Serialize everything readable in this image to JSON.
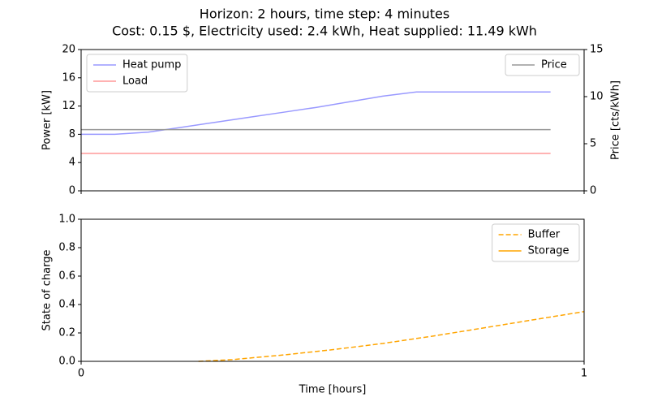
{
  "chart_data": [
    {
      "type": "line",
      "title": "Horizon: 2 hours, time step: 4 minutes",
      "subtitle": "Cost: 0.15 $, Electricity used: 2.4 kWh, Heat supplied: 11.49 kWh",
      "ylabel": "Power [kW]",
      "y2label": "Price [cts/kWh]",
      "x": [
        0,
        0.0667,
        0.1333,
        0.2,
        0.2667,
        0.3333,
        0.4,
        0.4667,
        0.5333,
        0.6,
        0.6667,
        0.7333,
        0.8,
        0.8667,
        0.9333
      ],
      "xlim": [
        0,
        1
      ],
      "xticks": [
        0,
        1
      ],
      "xticklabels": false,
      "ylim": [
        0,
        20
      ],
      "yticks": [
        0,
        4,
        8,
        12,
        16,
        20
      ],
      "y2lim": [
        0,
        15
      ],
      "y2ticks": [
        0,
        5,
        10,
        15
      ],
      "legend": "upper left",
      "legend2": "upper right",
      "series": [
        {
          "name": "Heat pump",
          "color": "#9999ff",
          "values": [
            8.0,
            8.0,
            8.3,
            9.0,
            9.7,
            10.4,
            11.1,
            11.8,
            12.6,
            13.4,
            14.0,
            14.0,
            14.0,
            14.0,
            14.0
          ]
        },
        {
          "name": "Load",
          "color": "#ff9999",
          "values": [
            5.3,
            5.3,
            5.3,
            5.3,
            5.3,
            5.3,
            5.3,
            5.3,
            5.3,
            5.3,
            5.3,
            5.3,
            5.3,
            5.3,
            5.3
          ]
        },
        {
          "name": "Price",
          "color": "#999999",
          "axis": "y2",
          "values": [
            6.5,
            6.5,
            6.5,
            6.5,
            6.5,
            6.5,
            6.5,
            6.5,
            6.5,
            6.5,
            6.5,
            6.5,
            6.5,
            6.5,
            6.5
          ]
        }
      ]
    },
    {
      "type": "line",
      "ylabel": "State of charge",
      "xlabel": "Time [hours]",
      "x": [
        0.2333,
        0.3,
        0.4,
        0.5,
        0.6,
        0.7,
        0.8,
        0.9,
        1.0
      ],
      "xlim": [
        0,
        1
      ],
      "xticks": [
        0,
        1
      ],
      "xticklabels": true,
      "ylim": [
        0,
        1
      ],
      "yticks": [
        {
          "value": 0,
          "label": "0.0"
        },
        0.2,
        0.4,
        0.6,
        0.8,
        {
          "value": 1,
          "label": "1.0"
        }
      ],
      "legend": "upper right",
      "series": [
        {
          "name": "Buffer",
          "color": "#ffa500",
          "dash": true,
          "values": [
            0,
            0.012,
            0.044,
            0.082,
            0.126,
            0.178,
            0.235,
            0.293,
            0.35
          ]
        },
        {
          "name": "Storage",
          "color": "#ffa500",
          "values": [
            null,
            null,
            null,
            null,
            null,
            null,
            null,
            null,
            null
          ]
        }
      ]
    }
  ]
}
